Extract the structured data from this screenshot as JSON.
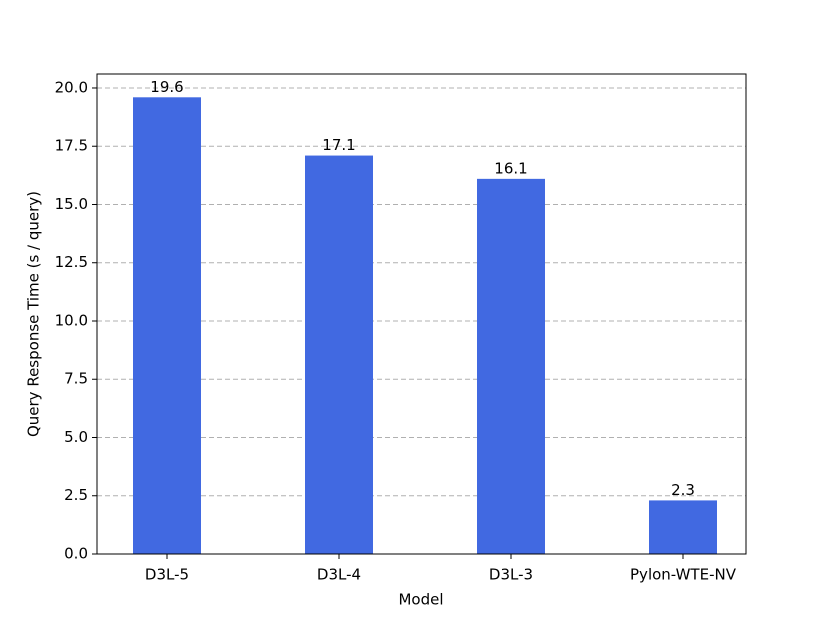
{
  "chart_data": {
    "type": "bar",
    "x_label": "Model",
    "y_label": "Query Response Time (s / query)",
    "categories": [
      "D3L-5",
      "D3L-4",
      "D3L-3",
      "Pylon-WTE-NV"
    ],
    "values": [
      19.6,
      17.1,
      16.1,
      2.3
    ],
    "color": "#4169e1",
    "ylim": [
      0,
      20.6
    ],
    "yticks": [
      {
        "value": 0,
        "label": "0.0"
      },
      2.5,
      {
        "value": 5,
        "label": "5.0"
      },
      7.5,
      {
        "value": 10,
        "label": "10.0"
      },
      12.5,
      {
        "value": 15,
        "label": "15.0"
      },
      17.5,
      {
        "value": 20,
        "label": "20.0"
      }
    ],
    "grid": true
  }
}
